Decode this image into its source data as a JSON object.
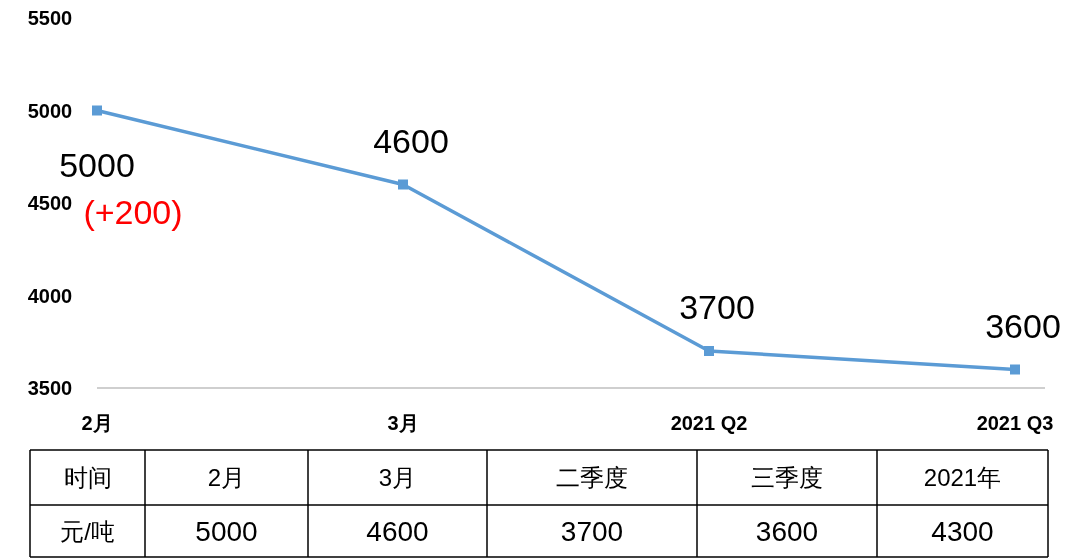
{
  "chart_data": [
    {
      "type": "line",
      "categories": [
        "2月",
        "3月",
        "2021 Q2",
        "2021 Q3"
      ],
      "series": [
        {
          "color": "#5b9bd5",
          "values": [
            5000,
            4600,
            3700,
            3600
          ]
        }
      ],
      "ylim": [
        3500,
        5500
      ],
      "yticks": [
        3500,
        4000,
        4500,
        5000,
        5500
      ],
      "grid": false,
      "marker": "square",
      "line_style": "solid",
      "data_labels": true,
      "annotations": [
        {
          "text": "(+200)",
          "x": "2月",
          "y": 5000
        }
      ]
    },
    {
      "type": "other",
      "categories": [
        "2月",
        "3月",
        "二季度",
        "三季度",
        "2021年"
      ],
      "values": [
        5000,
        4600,
        3700,
        3600,
        4300
      ],
      "data_labels": true,
      "annotations": [
        "时间",
        "元/吨"
      ]
    }
  ]
}
